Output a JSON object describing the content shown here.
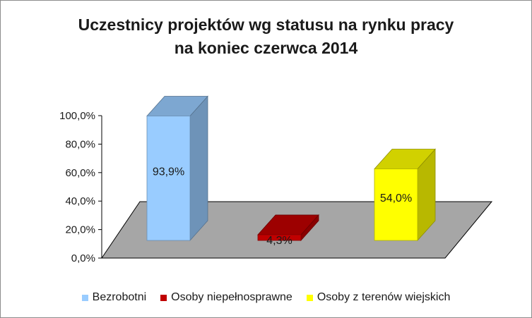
{
  "chart_data": {
    "type": "bar",
    "title_lines": [
      "Uczestnicy projektów wg statusu na rynku pracy",
      "na koniec czerwca 2014"
    ],
    "categories": [
      "Bezrobotni",
      "Osoby niepełnosprawne",
      "Osoby z terenów wiejskich"
    ],
    "values": [
      93.9,
      4.3,
      54.0
    ],
    "data_labels": [
      "93,9%",
      "4,3%",
      "54,0%"
    ],
    "colors": [
      "#99ccff",
      "#c00000",
      "#ffff00"
    ],
    "ylim": [
      0,
      100
    ],
    "yticks": [
      "0,0%",
      "20,0%",
      "40,0%",
      "60,0%",
      "80,0%",
      "100,0%"
    ],
    "legend_position": "bottom",
    "three_d": true,
    "floor_color": "#a6a6a6"
  }
}
